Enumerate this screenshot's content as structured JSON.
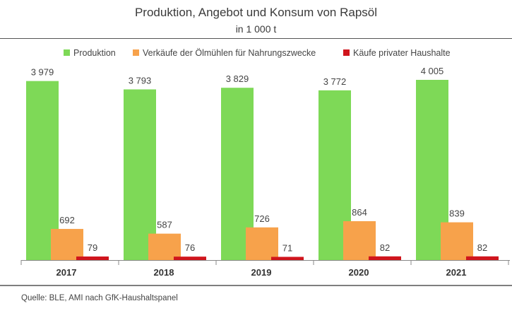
{
  "header": {
    "title": "Produktion, Angebot und Konsum von Rapsöl",
    "subtitle": "in 1 000 t"
  },
  "colors": {
    "produktion": "#7ed957",
    "verkaeufe": "#f7a24b",
    "kaeufe": "#d0151d"
  },
  "legend": [
    {
      "label": "Produktion",
      "color": "#7ed957"
    },
    {
      "label": "Verkäufe der Ölmühlen für Nahrungszwecke",
      "color": "#f7a24b"
    },
    {
      "label": "Käufe privater Haushalte",
      "color": "#d0151d"
    }
  ],
  "chart_data": {
    "type": "bar",
    "title": "Produktion, Angebot und Konsum von Rapsöl",
    "subtitle": "in 1 000 t",
    "categories": [
      "2017",
      "2018",
      "2019",
      "2020",
      "2021"
    ],
    "series": [
      {
        "name": "Produktion",
        "values": [
          3979,
          3793,
          3829,
          3772,
          4005
        ],
        "labels": [
          "3 979",
          "3 793",
          "3 829",
          "3 772",
          "4 005"
        ],
        "color": "#7ed957"
      },
      {
        "name": "Verkäufe der Ölmühlen für Nahrungszwecke",
        "values": [
          692,
          587,
          726,
          864,
          839
        ],
        "labels": [
          "692",
          "587",
          "726",
          "864",
          "839"
        ],
        "color": "#f7a24b"
      },
      {
        "name": "Käufe privater Haushalte",
        "values": [
          79,
          76,
          71,
          82,
          82
        ],
        "labels": [
          "79",
          "76",
          "71",
          "82",
          "82"
        ],
        "color": "#d0151d"
      }
    ],
    "ylim": [
      0,
      4005
    ],
    "grid": false,
    "legend_position": "top"
  },
  "source": "Quelle: BLE, AMI nach GfK-Haushaltspanel"
}
